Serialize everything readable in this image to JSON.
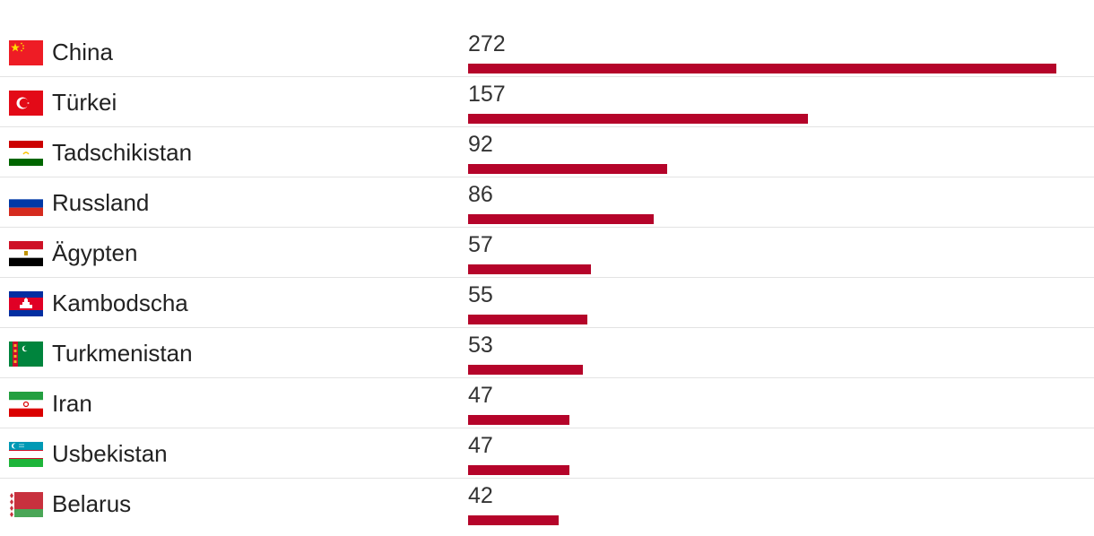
{
  "colors": {
    "bar": "#b5042a"
  },
  "chart_data": {
    "type": "bar",
    "orientation": "horizontal",
    "categories": [
      "China",
      "Türkei",
      "Tadschikistan",
      "Russland",
      "Ägypten",
      "Kambodscha",
      "Turkmenistan",
      "Iran",
      "Usbekistan",
      "Belarus"
    ],
    "values": [
      272,
      157,
      92,
      86,
      57,
      55,
      53,
      47,
      47,
      42
    ],
    "value_labels": [
      "272",
      "157",
      "92",
      "86",
      "57",
      "55",
      "53",
      "47",
      "47",
      "42"
    ],
    "title": "",
    "xlabel": "",
    "ylabel": "",
    "xlim": [
      0,
      272
    ],
    "grid": false,
    "legend": "none"
  },
  "rows": [
    {
      "country": "China",
      "value": "272",
      "flag_icon": "china-flag-icon"
    },
    {
      "country": "Türkei",
      "value": "157",
      "flag_icon": "turkey-flag-icon"
    },
    {
      "country": "Tadschikistan",
      "value": "92",
      "flag_icon": "tajikistan-flag-icon"
    },
    {
      "country": "Russland",
      "value": "86",
      "flag_icon": "russia-flag-icon"
    },
    {
      "country": "Ägypten",
      "value": "57",
      "flag_icon": "egypt-flag-icon"
    },
    {
      "country": "Kambodscha",
      "value": "55",
      "flag_icon": "cambodia-flag-icon"
    },
    {
      "country": "Turkmenistan",
      "value": "53",
      "flag_icon": "turkmenistan-flag-icon"
    },
    {
      "country": "Iran",
      "value": "47",
      "flag_icon": "iran-flag-icon"
    },
    {
      "country": "Usbekistan",
      "value": "47",
      "flag_icon": "uzbekistan-flag-icon"
    },
    {
      "country": "Belarus",
      "value": "42",
      "flag_icon": "belarus-flag-icon"
    }
  ]
}
